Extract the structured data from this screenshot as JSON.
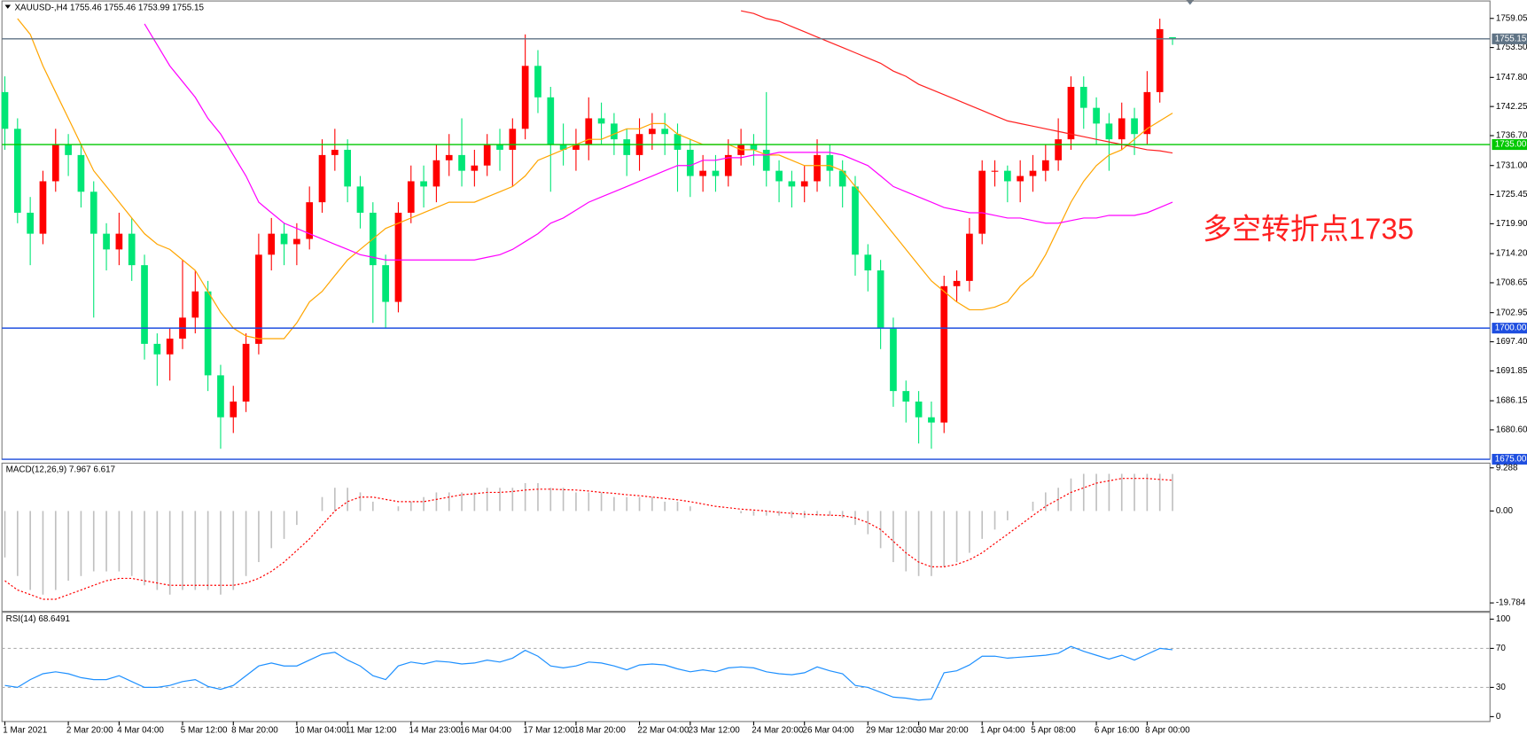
{
  "chart_data": [
    {
      "type": "candlestick",
      "title": "XAUUSD-,H4  1755.46 1755.46 1753.99 1755.15",
      "annotation": "多空转折点1735",
      "categories": [
        "1 Mar 2021",
        null,
        null,
        null,
        null,
        "2 Mar 20:00",
        null,
        null,
        null,
        "4 Mar 04:00",
        null,
        null,
        null,
        null,
        "5 Mar 12:00",
        null,
        null,
        null,
        "8 Mar 20:00",
        null,
        null,
        null,
        null,
        "10 Mar 04:00",
        null,
        null,
        null,
        "11 Mar 12:00",
        null,
        null,
        null,
        null,
        "14 Mar 23:00",
        null,
        null,
        null,
        "16 Mar 04:00",
        null,
        null,
        null,
        null,
        "17 Mar 12:00",
        null,
        null,
        null,
        "18 Mar 20:00",
        null,
        null,
        null,
        null,
        "22 Mar 04:00",
        null,
        null,
        null,
        "23 Mar 12:00",
        null,
        null,
        null,
        null,
        "24 Mar 20:00",
        null,
        null,
        null,
        "26 Mar 04:00",
        null,
        null,
        null,
        null,
        "29 Mar 12:00",
        null,
        null,
        null,
        "30 Mar 20:00",
        null,
        null,
        null,
        null,
        "1 Apr 04:00",
        null,
        null,
        null,
        "5 Apr 08:00",
        null,
        null,
        null,
        null,
        "6 Apr 16:00",
        null,
        null,
        null,
        "8 Apr 00:00",
        null,
        null
      ],
      "open": [
        1745,
        1738,
        1722,
        1718,
        1728,
        1735,
        1733,
        1726,
        1718,
        1715,
        1718,
        1712,
        1697,
        1695,
        1698,
        1702,
        1707,
        1691,
        1683,
        1686,
        1697,
        1714,
        1718,
        1716,
        1717,
        1724,
        1733,
        1734,
        1727,
        1722,
        1712,
        1705,
        1722,
        1728,
        1727,
        1732,
        1733,
        1730,
        1731,
        1735,
        1734,
        1738,
        1750,
        1744,
        1735,
        1734,
        1735,
        1740,
        1739,
        1736,
        1733,
        1737,
        1738,
        1737,
        1734,
        1729,
        1730,
        1729,
        1733,
        1735,
        1734,
        1730,
        1728,
        1727,
        1728,
        1733,
        1730,
        1727,
        1714,
        1711,
        1700,
        1688,
        1686,
        1683,
        1682,
        1708,
        1709,
        1718,
        1730,
        1730,
        1728,
        1729,
        1730,
        1732,
        1736,
        1746,
        1742,
        1739,
        1736,
        1740,
        1737,
        1745,
        1755.46
      ],
      "high": [
        1748,
        1740,
        1725,
        1730,
        1738,
        1737,
        1735,
        1728,
        1720,
        1722,
        1721,
        1714,
        1699,
        1700,
        1713,
        1711,
        1709,
        1693,
        1689,
        1699,
        1718,
        1721,
        1720,
        1720,
        1727,
        1736,
        1738,
        1736,
        1729,
        1724,
        1714,
        1724,
        1731,
        1731,
        1735,
        1737,
        1740,
        1734,
        1737,
        1738,
        1740,
        1756,
        1753,
        1746,
        1739,
        1738,
        1744,
        1743,
        1741,
        1738,
        1740,
        1741,
        1741,
        1739,
        1736,
        1733,
        1733,
        1736,
        1738,
        1737,
        1745,
        1732,
        1730,
        1731,
        1736,
        1735,
        1732,
        1729,
        1716,
        1713,
        1702,
        1690,
        1688,
        1686,
        1710,
        1711,
        1721,
        1732,
        1732,
        1731,
        1732,
        1733,
        1735,
        1740,
        1748,
        1748,
        1744,
        1741,
        1743,
        1742,
        1749,
        1759,
        1755.46
      ],
      "low": [
        1734,
        1720,
        1712,
        1716,
        1726,
        1729,
        1723,
        1702,
        1711,
        1712,
        1709,
        1694,
        1689,
        1690,
        1696,
        1699,
        1688,
        1677,
        1680,
        1684,
        1695,
        1711,
        1712,
        1712,
        1715,
        1722,
        1730,
        1724,
        1719,
        1701,
        1700,
        1703,
        1720,
        1723,
        1724,
        1729,
        1727,
        1727,
        1729,
        1730,
        1727,
        1736,
        1741,
        1726,
        1731,
        1730,
        1732,
        1735,
        1733,
        1729,
        1730,
        1734,
        1733,
        1726,
        1725,
        1726,
        1726,
        1727,
        1731,
        1731,
        1727,
        1724,
        1723,
        1724,
        1726,
        1727,
        1723,
        1710,
        1707,
        1696,
        1685,
        1682,
        1678,
        1677,
        1680,
        1705,
        1707,
        1716,
        1727,
        1724,
        1724,
        1726,
        1728,
        1730,
        1734,
        1738,
        1735,
        1730,
        1734,
        1733,
        1735,
        1743,
        1753.99
      ],
      "close": [
        1738,
        1722,
        1718,
        1728,
        1735,
        1733,
        1726,
        1718,
        1715,
        1718,
        1712,
        1697,
        1695,
        1698,
        1702,
        1707,
        1691,
        1683,
        1686,
        1697,
        1714,
        1718,
        1716,
        1717,
        1724,
        1733,
        1734,
        1727,
        1722,
        1712,
        1705,
        1722,
        1728,
        1727,
        1732,
        1733,
        1730,
        1731,
        1735,
        1734,
        1738,
        1750,
        1744,
        1735,
        1734,
        1735,
        1740,
        1739,
        1736,
        1733,
        1737,
        1738,
        1737,
        1734,
        1729,
        1730,
        1729,
        1733,
        1735,
        1734,
        1730,
        1728,
        1727,
        1728,
        1733,
        1730,
        1727,
        1714,
        1711,
        1700,
        1688,
        1686,
        1683,
        1682,
        1708,
        1709,
        1718,
        1730,
        1730,
        1728,
        1729,
        1730,
        1732,
        1736,
        1746,
        1742,
        1739,
        1736,
        1740,
        1737,
        1745,
        1757,
        1755.15
      ],
      "up_color": "#ff0000",
      "down_color": "#00e676",
      "series": [
        {
          "color": "#ffa500",
          "values": [
            null,
            1759,
            1756,
            1750,
            1745,
            1740,
            1735,
            1730,
            1727,
            1724,
            1721,
            1718,
            1716,
            1715,
            1713,
            1711,
            1707,
            1703,
            1700,
            1698.5,
            1698,
            1698,
            1698,
            1701,
            1705,
            1707,
            1710,
            1713,
            1715,
            1717,
            1719,
            1720,
            1721,
            1722,
            1723,
            1724,
            1724,
            1724,
            1725,
            1726,
            1727,
            1729,
            1732,
            1733,
            1734,
            1735,
            1736,
            1736,
            1737,
            1738,
            1738,
            1739,
            1739,
            1737,
            1736,
            1735,
            1735,
            1735,
            1734,
            1734,
            1733,
            1733,
            1732,
            1731,
            1731,
            1731,
            1730,
            1727,
            1724,
            1721,
            1718,
            1715,
            1712,
            1709,
            1707,
            1705,
            1703.5,
            1703.5,
            1704,
            1705,
            1708,
            1710,
            1714,
            1719,
            1724,
            1728,
            1731,
            1733,
            1734,
            1736,
            1738,
            1739.5,
            1741
          ]
        },
        {
          "color": "#ff00ff",
          "values": [
            null,
            null,
            null,
            null,
            null,
            null,
            null,
            null,
            null,
            null,
            null,
            1758,
            1754,
            1750,
            1747,
            1744,
            1740,
            1737,
            1733,
            1729,
            1724,
            1722,
            1720,
            1719,
            1718,
            1717,
            1716,
            1715,
            1714,
            1713.5,
            1713,
            1713,
            1713,
            1713,
            1713,
            1713,
            1713,
            1713,
            1713.5,
            1714,
            1715,
            1716.5,
            1718,
            1720,
            1721,
            1722.5,
            1724,
            1725,
            1726,
            1727,
            1728,
            1729,
            1730,
            1731,
            1731,
            1732,
            1732,
            1732.5,
            1732.5,
            1733,
            1733,
            1733.5,
            1733.5,
            1733.5,
            1733.5,
            1733.5,
            1733,
            1732,
            1731,
            1729,
            1727,
            1726,
            1725,
            1724,
            1723,
            1722.5,
            1722,
            1722,
            1721.5,
            1721,
            1721,
            1720.5,
            1720,
            1720,
            1720.5,
            1721,
            1721,
            1721.5,
            1721.5,
            1721.5,
            1722,
            1723,
            1724
          ]
        },
        {
          "color": "#ff2020",
          "values": [
            null,
            null,
            null,
            null,
            null,
            null,
            null,
            null,
            null,
            null,
            null,
            null,
            null,
            null,
            null,
            null,
            null,
            null,
            null,
            null,
            null,
            null,
            null,
            null,
            null,
            null,
            null,
            null,
            null,
            null,
            null,
            null,
            null,
            null,
            null,
            null,
            null,
            null,
            null,
            null,
            null,
            null,
            null,
            null,
            null,
            null,
            null,
            null,
            null,
            null,
            null,
            null,
            null,
            null,
            null,
            null,
            null,
            null,
            1760.5,
            1760,
            1759,
            1758.5,
            1757.5,
            1756.5,
            1755.5,
            1754.5,
            1753.5,
            1752.5,
            1751.5,
            1750.5,
            1749,
            1748,
            1746.5,
            1745.5,
            1744.5,
            1743.5,
            1742.5,
            1741.5,
            1740.5,
            1739.5,
            1739,
            1738.5,
            1738,
            1737.5,
            1737,
            1736.5,
            1736,
            1735.5,
            1735,
            1734.5,
            1734,
            1733.8,
            1733.4
          ]
        }
      ],
      "ylim": [
        1675,
        1760.7
      ],
      "yticks": [
        1759.05,
        {
          "value": 1753.5,
          "label": "1753.50"
        },
        {
          "value": 1747.8,
          "label": "1747.80"
        },
        1742.25,
        {
          "value": 1736.7,
          "label": "1736.70"
        },
        {
          "value": 1731,
          "label": "1731.00"
        },
        1725.45,
        {
          "value": 1719.9,
          "label": "1719.90"
        },
        {
          "value": 1714.2,
          "label": "1714.20"
        },
        1708.65,
        1702.95,
        {
          "value": 1697.4,
          "label": "1697.40"
        },
        1691.85,
        1686.15,
        {
          "value": 1680.6,
          "label": "1680.60"
        }
      ],
      "hlines": [
        {
          "value": 1755.15,
          "label": "1755.15",
          "color": "#5f7385"
        },
        {
          "value": 1735,
          "label": "1735.00",
          "color": "#00c800"
        },
        {
          "value": 1700,
          "label": "1700.00",
          "color": "#1f4fe0"
        },
        {
          "value": 1675,
          "label": "1675.00",
          "color": "#1f4fe0"
        }
      ]
    },
    {
      "type": "bar",
      "title": "MACD(12,26,9) 7.967 6.617",
      "color": "#c0c0c0",
      "values": [
        -10,
        -14,
        -17,
        -18,
        -17,
        -15,
        -14,
        -13,
        -13,
        -13,
        -14,
        -16,
        -17,
        -18,
        -17,
        -17,
        -17,
        -18,
        -17,
        -14,
        -11,
        -8,
        -6,
        -3,
        0,
        3,
        5,
        5,
        4,
        2,
        0,
        1,
        2,
        3,
        4,
        4,
        4,
        4,
        5,
        5,
        5,
        6,
        6,
        5,
        5,
        4,
        4,
        4,
        3,
        3,
        3,
        3,
        2,
        2,
        1,
        0,
        0,
        0,
        -0.5,
        -1,
        -1,
        -1,
        -1.5,
        -1.5,
        -1,
        -1,
        -1.5,
        -3,
        -5,
        -8,
        -11,
        -13,
        -14,
        -14,
        -12,
        -11,
        -9,
        -6,
        -4,
        -2,
        0,
        2,
        4,
        5,
        7,
        8,
        8,
        8,
        8,
        8,
        8,
        8,
        7.967
      ],
      "series": [
        {
          "color": "#ff0000",
          "line_style": "dotted",
          "values": [
            -15,
            -17,
            -18,
            -19,
            -19,
            -18,
            -17,
            -16,
            -15,
            -14.5,
            -14.5,
            -15,
            -15.5,
            -16,
            -16,
            -16,
            -16,
            -16,
            -16,
            -15.5,
            -14.5,
            -13,
            -11,
            -8.5,
            -6,
            -3,
            0,
            2,
            3,
            3,
            2.5,
            2,
            2,
            2,
            2.5,
            3,
            3.5,
            3.7,
            4,
            4,
            4.2,
            4.5,
            4.7,
            4.7,
            4.6,
            4.5,
            4.3,
            4,
            3.8,
            3.5,
            3.3,
            3,
            2.7,
            2.4,
            2,
            1.5,
            1,
            0.7,
            0.4,
            0.2,
            0,
            -0.3,
            -0.5,
            -0.7,
            -0.8,
            -0.9,
            -1,
            -1.5,
            -2.5,
            -4,
            -6.5,
            -9,
            -11,
            -12,
            -12,
            -11.5,
            -10.5,
            -9,
            -7,
            -5,
            -3,
            -1,
            1,
            2.5,
            4,
            5,
            6,
            6.5,
            7,
            7,
            7,
            6.8,
            6.617
          ]
        }
      ],
      "ylim": [
        -21.6,
        10.3
      ],
      "yticks": [
        9.288,
        {
          "value": 0,
          "label": "0.00"
        },
        -19.784
      ]
    },
    {
      "type": "line",
      "title": "RSI(14) 68.6491",
      "color": "#1e90ff",
      "values": [
        32,
        30,
        38,
        44,
        46,
        44,
        40,
        38,
        38,
        42,
        36,
        30,
        30,
        32,
        36,
        38,
        31,
        28,
        32,
        42,
        52,
        55,
        52,
        52,
        58,
        64,
        66,
        58,
        52,
        42,
        38,
        52,
        56,
        54,
        57,
        56,
        54,
        55,
        58,
        56,
        60,
        68,
        62,
        52,
        50,
        52,
        56,
        55,
        52,
        48,
        53,
        54,
        53,
        49,
        46,
        48,
        46,
        50,
        51,
        50,
        46,
        44,
        43,
        45,
        51,
        47,
        44,
        32,
        30,
        25,
        20,
        19,
        17,
        18,
        45,
        47,
        53,
        62,
        62,
        60,
        61,
        62,
        63,
        65,
        72,
        67,
        63,
        59,
        63,
        58,
        64,
        70,
        68.6491
      ],
      "ylim": [
        -5,
        107
      ],
      "yticks": [
        100,
        70,
        30,
        0
      ],
      "levels": [
        70,
        30
      ]
    }
  ]
}
